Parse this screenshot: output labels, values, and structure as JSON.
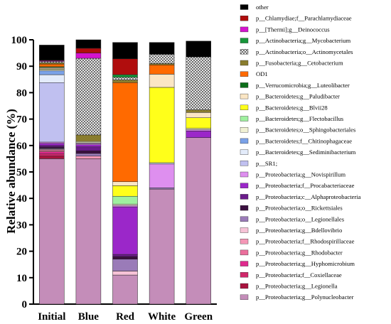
{
  "chart_data": {
    "type": "bar",
    "stacked": true,
    "title": "",
    "xlabel": "",
    "ylabel": "Relative abundance (%)",
    "ylim": [
      0,
      100
    ],
    "yticks": [
      0,
      10,
      20,
      30,
      40,
      50,
      60,
      70,
      80,
      90,
      100
    ],
    "grid": false,
    "legend_position": "right",
    "categories": [
      "Initial",
      "Blue",
      "Red",
      "White",
      "Green"
    ],
    "series": [
      {
        "name": "p__Proteobacteria;g__Polynucleobacter",
        "color": "#c48db9",
        "pattern": "",
        "values": [
          55.0,
          55.0,
          11.0,
          43.5,
          63.0
        ]
      },
      {
        "name": "p__Proteobacteria;g__Legionella",
        "color": "#a8123e",
        "pattern": "",
        "values": [
          1.0,
          0.0,
          0.0,
          0.0,
          0.0
        ]
      },
      {
        "name": "p__Proteobacteria;f__Coxiellaceae",
        "color": "#d0286a",
        "pattern": "",
        "values": [
          0.8,
          0.0,
          0.0,
          0.0,
          0.0
        ]
      },
      {
        "name": "p__Proteobacteria;g__Hyphomicrobium",
        "color": "#e02a8e",
        "pattern": "",
        "values": [
          0.8,
          0.0,
          0.0,
          0.0,
          0.0
        ]
      },
      {
        "name": "p__Proteobacteria;g__Rhodobacter",
        "color": "#eb6f9c",
        "pattern": "",
        "values": [
          0.5,
          0.0,
          0.0,
          0.0,
          0.0
        ]
      },
      {
        "name": "p__Proteobacteria;f__Rhodospirillaceae",
        "color": "#f497b6",
        "pattern": "",
        "values": [
          0.3,
          1.0,
          0.0,
          0.0,
          0.0
        ]
      },
      {
        "name": "p__Proteobacteria;g__Bdellovibrio",
        "color": "#f7c3d7",
        "pattern": "",
        "values": [
          0.3,
          0.0,
          1.5,
          0.0,
          0.0
        ]
      },
      {
        "name": "p__Proteobacteria;o__Legionellales",
        "color": "#9a7bb8",
        "pattern": "",
        "values": [
          0.3,
          1.0,
          4.5,
          0.5,
          0.0
        ]
      },
      {
        "name": "p__Proteobacteria;o__Rickettsiales",
        "color": "#3b1040",
        "pattern": "",
        "values": [
          0.5,
          1.0,
          1.0,
          0.0,
          0.0
        ]
      },
      {
        "name": "p__Proteobacteria;c__Alphaproteobacteria",
        "color": "#6a1b8a",
        "pattern": "",
        "values": [
          0.5,
          1.5,
          0.8,
          0.0,
          0.0
        ]
      },
      {
        "name": "p__Proteobacteria;f__Procabacteriaceae",
        "color": "#9b27c9",
        "pattern": "",
        "values": [
          0.8,
          0.8,
          18.0,
          0.0,
          2.5
        ]
      },
      {
        "name": "p__Proteobacteria;g__Novispirillum",
        "color": "#de8fef",
        "pattern": "",
        "values": [
          0.5,
          0.5,
          0.5,
          9.0,
          0.5
        ]
      },
      {
        "name": "p__SR1;",
        "color": "#c0c0f0",
        "pattern": "",
        "values": [
          22.5,
          0.0,
          0.0,
          0.0,
          0.0
        ]
      },
      {
        "name": "p__Bacteroidetes;g__Sediminibacterium",
        "color": "#e4ecfb",
        "pattern": "",
        "values": [
          3.0,
          0.2,
          0.0,
          0.5,
          0.0
        ]
      },
      {
        "name": "p__Bacteroidetes;f__Chitinophagaceae",
        "color": "#7ba2e8",
        "pattern": "",
        "values": [
          1.5,
          0.0,
          0.0,
          0.0,
          0.0
        ]
      },
      {
        "name": "p__Bacteroidetes;o__Sphingobacteriales",
        "color": "#f1f1d4",
        "pattern": "",
        "values": [
          0.5,
          0.5,
          0.5,
          0.0,
          0.5
        ]
      },
      {
        "name": "p__Bacteroidetes;g__Flectobacillus",
        "color": "#9ff09f",
        "pattern": "",
        "values": [
          0.0,
          0.0,
          3.0,
          0.0,
          0.0
        ]
      },
      {
        "name": "p__Bacteroidetes;g__Blvii28",
        "color": "#ffff1a",
        "pattern": "",
        "values": [
          0.2,
          0.0,
          4.0,
          28.5,
          4.0
        ]
      },
      {
        "name": "p__Bacteroidetes;g__Paludibacter",
        "color": "#fbe6c4",
        "pattern": "",
        "values": [
          0.5,
          0.0,
          1.5,
          5.0,
          2.0
        ]
      },
      {
        "name": "p__Verrucomicrobia;g__Luteolibacter",
        "color": "#0c6e19",
        "pattern": "",
        "values": [
          0.3,
          0.0,
          0.0,
          0.0,
          0.0
        ]
      },
      {
        "name": "OD1",
        "color": "#ff6a00",
        "pattern": "",
        "values": [
          1.0,
          0.0,
          37.5,
          3.5,
          0.0
        ]
      },
      {
        "name": "p__Fusobacteria;g__Cetobacterium",
        "color": "#8a7d2e",
        "pattern": "",
        "values": [
          0.5,
          2.5,
          1.0,
          0.5,
          1.0
        ]
      },
      {
        "name": "p__Actinobacteria;o__Actinomycetales",
        "color": "#a0a0a0",
        "pattern": "checker",
        "values": [
          0.5,
          29.0,
          1.0,
          3.5,
          20.0
        ]
      },
      {
        "name": "p__Actinobacteria;g__Mycobacterium",
        "color": "#17963a",
        "pattern": "",
        "values": [
          0.0,
          0.0,
          1.0,
          0.0,
          0.0
        ]
      },
      {
        "name": "p__[Thermi];g__Deinococcus",
        "color": "#d413ce",
        "pattern": "",
        "values": [
          0.3,
          2.0,
          0.0,
          0.0,
          0.0
        ]
      },
      {
        "name": "p__Chlamydiae;f__Parachlamydiaceae",
        "color": "#b00d0d",
        "pattern": "",
        "values": [
          0.2,
          1.8,
          6.0,
          0.0,
          0.0
        ]
      },
      {
        "name": "other",
        "color": "#000000",
        "pattern": "",
        "values": [
          5.7,
          3.2,
          6.2,
          4.5,
          6.0
        ]
      }
    ]
  }
}
